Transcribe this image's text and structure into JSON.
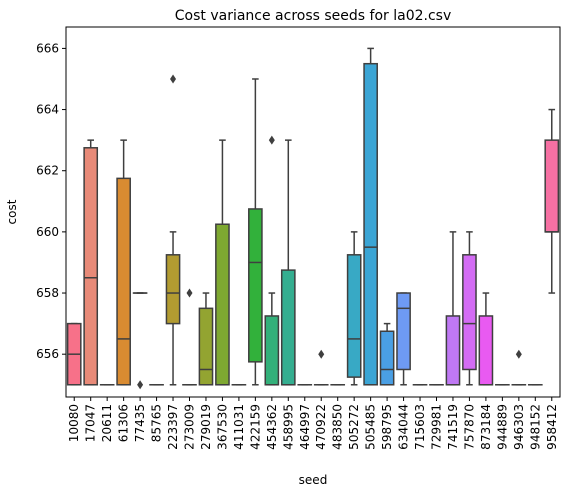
{
  "chart_data": {
    "type": "box",
    "title": "Cost variance across seeds for la02.csv",
    "x_label": "seed",
    "y_label": "cost",
    "categories": [
      "10080",
      "17047",
      "20611",
      "61306",
      "77435",
      "85765",
      "223397",
      "273009",
      "279019",
      "367530",
      "411031",
      "422159",
      "454362",
      "458995",
      "464997",
      "470922",
      "483850",
      "505272",
      "505485",
      "598795",
      "634044",
      "715603",
      "729981",
      "741519",
      "757870",
      "873184",
      "944889",
      "946303",
      "948152",
      "958412"
    ],
    "colors": [
      "#f77189",
      "#e88a78",
      "#e7812f",
      "#d98b31",
      "#cc9231",
      "#bf9731",
      "#b29b31",
      "#a4a031",
      "#93a431",
      "#7ea831",
      "#5fac31",
      "#32b13b",
      "#33b07a",
      "#34ae90",
      "#35ad9f",
      "#36acab",
      "#37aab7",
      "#38a9c5",
      "#3ba5d5",
      "#4a9fe4",
      "#6e9af4",
      "#9191f4",
      "#a985f4",
      "#bf78f4",
      "#d36cf4",
      "#e95af1",
      "#f45fdc",
      "#f566c9",
      "#f56cb6",
      "#f670a3"
    ],
    "boxes": [
      {
        "low": 655,
        "q1": 655,
        "median": 656,
        "q3": 657,
        "high": 657,
        "outliers": []
      },
      {
        "low": 655,
        "q1": 655,
        "median": 658.5,
        "q3": 662.75,
        "high": 663,
        "outliers": []
      },
      {
        "low": 655,
        "q1": 655,
        "median": 655,
        "q3": 655,
        "high": 655,
        "outliers": []
      },
      {
        "low": 655,
        "q1": 655,
        "median": 656.5,
        "q3": 661.75,
        "high": 663,
        "outliers": []
      },
      {
        "low": 658,
        "q1": 658,
        "median": 658,
        "q3": 658,
        "high": 658,
        "outliers": [
          655
        ]
      },
      {
        "low": 655,
        "q1": 655,
        "median": 655,
        "q3": 655,
        "high": 655,
        "outliers": []
      },
      {
        "low": 655,
        "q1": 657,
        "median": 658,
        "q3": 659.25,
        "high": 660,
        "outliers": [
          665
        ]
      },
      {
        "low": 655,
        "q1": 655,
        "median": 655,
        "q3": 655,
        "high": 655,
        "outliers": [
          658
        ]
      },
      {
        "low": 655,
        "q1": 655,
        "median": 655.5,
        "q3": 657.5,
        "high": 658,
        "outliers": []
      },
      {
        "low": 655,
        "q1": 655,
        "median": 655,
        "q3": 660.25,
        "high": 663,
        "outliers": []
      },
      {
        "low": 655,
        "q1": 655,
        "median": 655,
        "q3": 655,
        "high": 655,
        "outliers": []
      },
      {
        "low": 655,
        "q1": 655.75,
        "median": 659,
        "q3": 660.75,
        "high": 665,
        "outliers": []
      },
      {
        "low": 655,
        "q1": 655,
        "median": 655,
        "q3": 657.25,
        "high": 658,
        "outliers": [
          663
        ]
      },
      {
        "low": 655,
        "q1": 655,
        "median": 655,
        "q3": 658.75,
        "high": 663,
        "outliers": []
      },
      {
        "low": 655,
        "q1": 655,
        "median": 655,
        "q3": 655,
        "high": 655,
        "outliers": []
      },
      {
        "low": 655,
        "q1": 655,
        "median": 655,
        "q3": 655,
        "high": 655,
        "outliers": [
          656
        ]
      },
      {
        "low": 655,
        "q1": 655,
        "median": 655,
        "q3": 655,
        "high": 655,
        "outliers": []
      },
      {
        "low": 655,
        "q1": 655.25,
        "median": 656.5,
        "q3": 659.25,
        "high": 660,
        "outliers": []
      },
      {
        "low": 655,
        "q1": 655,
        "median": 659.5,
        "q3": 665.5,
        "high": 666,
        "outliers": []
      },
      {
        "low": 655,
        "q1": 655,
        "median": 655.5,
        "q3": 656.75,
        "high": 657,
        "outliers": []
      },
      {
        "low": 655,
        "q1": 655.5,
        "median": 657.5,
        "q3": 658,
        "high": 658,
        "outliers": []
      },
      {
        "low": 655,
        "q1": 655,
        "median": 655,
        "q3": 655,
        "high": 655,
        "outliers": []
      },
      {
        "low": 655,
        "q1": 655,
        "median": 655,
        "q3": 655,
        "high": 655,
        "outliers": []
      },
      {
        "low": 655,
        "q1": 655,
        "median": 655,
        "q3": 657.25,
        "high": 660,
        "outliers": []
      },
      {
        "low": 655,
        "q1": 655.5,
        "median": 657,
        "q3": 659.25,
        "high": 660,
        "outliers": []
      },
      {
        "low": 655,
        "q1": 655,
        "median": 655,
        "q3": 657.25,
        "high": 658,
        "outliers": []
      },
      {
        "low": 655,
        "q1": 655,
        "median": 655,
        "q3": 655,
        "high": 655,
        "outliers": []
      },
      {
        "low": 655,
        "q1": 655,
        "median": 655,
        "q3": 655,
        "high": 655,
        "outliers": [
          656
        ]
      },
      {
        "low": 655,
        "q1": 655,
        "median": 655,
        "q3": 655,
        "high": 655,
        "outliers": []
      },
      {
        "low": 658,
        "q1": 660,
        "median": 660,
        "q3": 663,
        "high": 664,
        "outliers": []
      }
    ],
    "ylim": [
      654.6,
      666.7
    ],
    "yticks": [
      656,
      658,
      660,
      662,
      664,
      666
    ]
  }
}
